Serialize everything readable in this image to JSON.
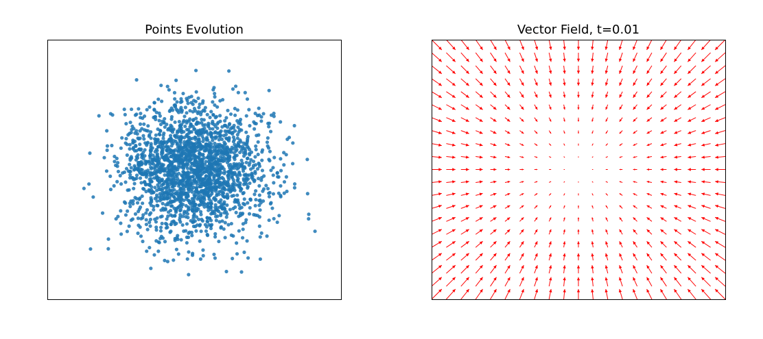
{
  "figure": {
    "background": "#ffffff"
  },
  "chart_data": [
    {
      "type": "scatter",
      "title": "Points Evolution",
      "xlabel": "",
      "ylabel": "",
      "ticks_visible": false,
      "grid": false,
      "xlim": [
        -4,
        4
      ],
      "ylim": [
        -4,
        4
      ],
      "color": "#1f77b4",
      "alpha": 0.85,
      "distribution": "gaussian",
      "mean": [
        0,
        0
      ],
      "std": [
        1,
        1
      ],
      "n_points": 2200,
      "seed": 7
    },
    {
      "type": "quiver",
      "title": "Vector Field, t=0.01",
      "xlabel": "",
      "ylabel": "",
      "ticks_visible": false,
      "grid": false,
      "xlim": [
        -4,
        4
      ],
      "ylim": [
        -4,
        4
      ],
      "grid_count": 21,
      "field": "radial-inward",
      "color": "#ff0000"
    }
  ]
}
